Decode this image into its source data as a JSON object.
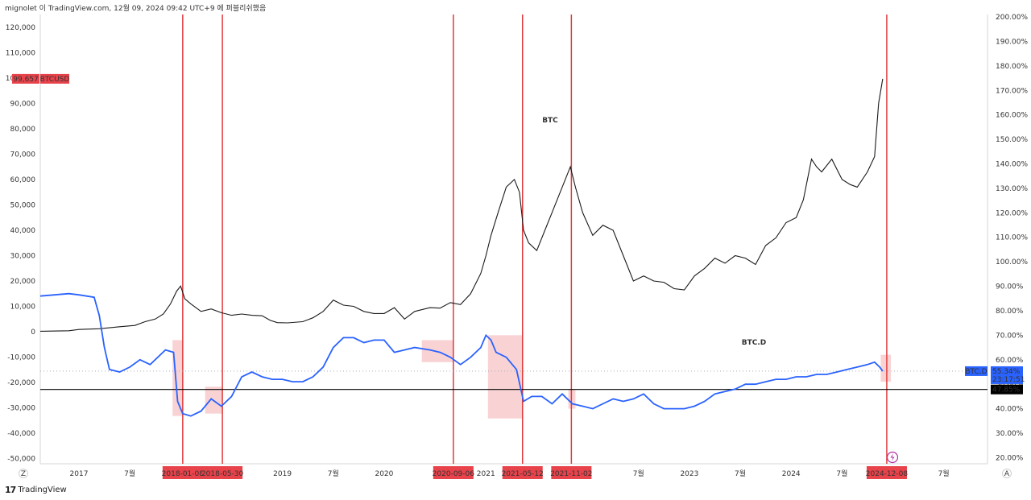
{
  "header": {
    "text": "mignolet 이 TradingView.com, 12월 09, 2024 09:42 UTC+9 에 퍼블리쉬했음"
  },
  "footer": {
    "logo": "17",
    "brand": "TradingView"
  },
  "axis_corner_left": "Z",
  "axis_corner_right": "A",
  "colors": {
    "btc": "#1a1a1a",
    "btcd": "#2962ff",
    "vline": "#e03a3a",
    "shade": "#f5b5b8",
    "label_bg": "#e8424a",
    "grid": "#ffffff",
    "hline": "#000000"
  },
  "chart_data": {
    "type": "line",
    "title": "",
    "annotations": {
      "btc": "BTC",
      "btcd": "BTC.D"
    },
    "left_axis": {
      "ylim": [
        -52000,
        125000
      ],
      "ticks": [
        "120,000",
        "110,000",
        "100,000",
        "90,000",
        "80,000",
        "70,000",
        "60,000",
        "50,000",
        "40,000",
        "30,000",
        "20,000",
        "10,000",
        "0",
        "-10,000",
        "-20,000",
        "-30,000",
        "-40,000",
        "-50,000"
      ],
      "tick_values": [
        120000,
        110000,
        100000,
        90000,
        80000,
        70000,
        60000,
        50000,
        40000,
        30000,
        20000,
        10000,
        0,
        -10000,
        -20000,
        -30000,
        -40000,
        -50000
      ]
    },
    "right_axis": {
      "unit": "%",
      "ylim": [
        17.5,
        201
      ],
      "ticks": [
        "200.00%",
        "190.00%",
        "180.00%",
        "170.00%",
        "160.00%",
        "150.00%",
        "140.00%",
        "130.00%",
        "120.00%",
        "110.00%",
        "100.00%",
        "90.00%",
        "80.00%",
        "70.00%",
        "60.00%",
        "50.00%",
        "40.00%",
        "30.00%",
        "20.00%"
      ],
      "tick_values": [
        200,
        190,
        180,
        170,
        160,
        150,
        140,
        130,
        120,
        110,
        100,
        90,
        80,
        70,
        60,
        50,
        40,
        30,
        20
      ]
    },
    "x_axis": {
      "ticks": [
        {
          "label": "2017",
          "t": 2017.0
        },
        {
          "label": "7월",
          "t": 2017.5
        },
        {
          "label": "2019",
          "t": 2019.0
        },
        {
          "label": "7월",
          "t": 2019.5
        },
        {
          "label": "2020",
          "t": 2020.0
        },
        {
          "label": "2021",
          "t": 2021.0
        },
        {
          "label": "7월",
          "t": 2022.5
        },
        {
          "label": "2023",
          "t": 2023.0
        },
        {
          "label": "7월",
          "t": 2023.5
        },
        {
          "label": "2024",
          "t": 2024.0
        },
        {
          "label": "7월",
          "t": 2024.5
        },
        {
          "label": "7월",
          "t": 2025.5
        }
      ],
      "xlim": [
        2016.62,
        2025.93
      ]
    },
    "series": [
      {
        "name": "BTCUSD",
        "axis": "left",
        "last_value_label": "99,657",
        "points": [
          [
            2016.62,
            200
          ],
          [
            2016.9,
            400
          ],
          [
            2017.0,
            900
          ],
          [
            2017.2,
            1200
          ],
          [
            2017.4,
            2000
          ],
          [
            2017.55,
            2500
          ],
          [
            2017.65,
            4000
          ],
          [
            2017.75,
            5000
          ],
          [
            2017.83,
            7000
          ],
          [
            2017.9,
            11000
          ],
          [
            2017.96,
            16000
          ],
          [
            2018.0,
            18000
          ],
          [
            2018.04,
            13000
          ],
          [
            2018.1,
            11000
          ],
          [
            2018.2,
            8000
          ],
          [
            2018.3,
            9000
          ],
          [
            2018.4,
            7500
          ],
          [
            2018.5,
            6500
          ],
          [
            2018.6,
            7000
          ],
          [
            2018.7,
            6500
          ],
          [
            2018.8,
            6300
          ],
          [
            2018.88,
            4500
          ],
          [
            2018.95,
            3600
          ],
          [
            2019.05,
            3500
          ],
          [
            2019.2,
            4000
          ],
          [
            2019.3,
            5500
          ],
          [
            2019.4,
            8000
          ],
          [
            2019.5,
            12500
          ],
          [
            2019.6,
            10500
          ],
          [
            2019.7,
            10000
          ],
          [
            2019.8,
            8000
          ],
          [
            2019.9,
            7200
          ],
          [
            2020.0,
            7200
          ],
          [
            2020.1,
            9500
          ],
          [
            2020.2,
            5000
          ],
          [
            2020.3,
            8000
          ],
          [
            2020.45,
            9500
          ],
          [
            2020.55,
            9300
          ],
          [
            2020.65,
            11500
          ],
          [
            2020.75,
            10700
          ],
          [
            2020.85,
            15000
          ],
          [
            2020.95,
            23000
          ],
          [
            2021.0,
            30000
          ],
          [
            2021.05,
            38000
          ],
          [
            2021.12,
            47000
          ],
          [
            2021.2,
            57000
          ],
          [
            2021.28,
            60000
          ],
          [
            2021.33,
            55000
          ],
          [
            2021.37,
            40000
          ],
          [
            2021.42,
            35000
          ],
          [
            2021.5,
            32000
          ],
          [
            2021.58,
            40000
          ],
          [
            2021.65,
            47000
          ],
          [
            2021.75,
            57000
          ],
          [
            2021.83,
            65000
          ],
          [
            2021.88,
            57000
          ],
          [
            2021.95,
            47000
          ],
          [
            2022.05,
            38000
          ],
          [
            2022.15,
            42000
          ],
          [
            2022.25,
            40000
          ],
          [
            2022.35,
            30000
          ],
          [
            2022.45,
            20000
          ],
          [
            2022.55,
            22000
          ],
          [
            2022.65,
            20000
          ],
          [
            2022.75,
            19500
          ],
          [
            2022.85,
            17000
          ],
          [
            2022.95,
            16500
          ],
          [
            2023.05,
            22000
          ],
          [
            2023.15,
            25000
          ],
          [
            2023.25,
            29000
          ],
          [
            2023.35,
            27000
          ],
          [
            2023.45,
            30000
          ],
          [
            2023.55,
            29000
          ],
          [
            2023.65,
            26500
          ],
          [
            2023.75,
            34000
          ],
          [
            2023.85,
            37000
          ],
          [
            2023.95,
            43000
          ],
          [
            2024.05,
            45000
          ],
          [
            2024.12,
            52000
          ],
          [
            2024.2,
            68000
          ],
          [
            2024.25,
            65000
          ],
          [
            2024.3,
            63000
          ],
          [
            2024.4,
            68000
          ],
          [
            2024.5,
            60000
          ],
          [
            2024.58,
            58000
          ],
          [
            2024.65,
            57000
          ],
          [
            2024.75,
            63000
          ],
          [
            2024.82,
            69000
          ],
          [
            2024.86,
            90000
          ],
          [
            2024.9,
            99657
          ]
        ]
      },
      {
        "name": "BTC.D",
        "axis": "right",
        "last_value_label": "55.34%",
        "countdown": "23:17:51",
        "points": [
          [
            2016.62,
            86
          ],
          [
            2016.9,
            87
          ],
          [
            2017.0,
            86.5
          ],
          [
            2017.15,
            85.5
          ],
          [
            2017.2,
            78
          ],
          [
            2017.25,
            65
          ],
          [
            2017.3,
            56
          ],
          [
            2017.4,
            55
          ],
          [
            2017.5,
            57
          ],
          [
            2017.6,
            60
          ],
          [
            2017.7,
            58
          ],
          [
            2017.85,
            64
          ],
          [
            2017.93,
            63
          ],
          [
            2017.97,
            43
          ],
          [
            2018.02,
            38
          ],
          [
            2018.1,
            37
          ],
          [
            2018.2,
            39
          ],
          [
            2018.3,
            44
          ],
          [
            2018.4,
            41
          ],
          [
            2018.5,
            45
          ],
          [
            2018.6,
            53
          ],
          [
            2018.7,
            55
          ],
          [
            2018.8,
            53
          ],
          [
            2018.9,
            52
          ],
          [
            2019.0,
            52
          ],
          [
            2019.1,
            51
          ],
          [
            2019.2,
            51
          ],
          [
            2019.3,
            53
          ],
          [
            2019.4,
            57
          ],
          [
            2019.5,
            65
          ],
          [
            2019.6,
            69
          ],
          [
            2019.7,
            69
          ],
          [
            2019.8,
            67
          ],
          [
            2019.9,
            68
          ],
          [
            2020.0,
            68
          ],
          [
            2020.1,
            63
          ],
          [
            2020.2,
            64
          ],
          [
            2020.3,
            65
          ],
          [
            2020.45,
            64
          ],
          [
            2020.55,
            63
          ],
          [
            2020.65,
            61
          ],
          [
            2020.75,
            58
          ],
          [
            2020.85,
            61
          ],
          [
            2020.95,
            65
          ],
          [
            2021.0,
            70
          ],
          [
            2021.05,
            68
          ],
          [
            2021.1,
            63
          ],
          [
            2021.2,
            61
          ],
          [
            2021.3,
            56
          ],
          [
            2021.37,
            43
          ],
          [
            2021.45,
            45
          ],
          [
            2021.55,
            45
          ],
          [
            2021.65,
            42
          ],
          [
            2021.75,
            46
          ],
          [
            2021.85,
            42
          ],
          [
            2021.95,
            41
          ],
          [
            2022.05,
            40
          ],
          [
            2022.15,
            42
          ],
          [
            2022.25,
            44
          ],
          [
            2022.35,
            43
          ],
          [
            2022.45,
            44
          ],
          [
            2022.55,
            46
          ],
          [
            2022.65,
            42
          ],
          [
            2022.75,
            40
          ],
          [
            2022.85,
            40
          ],
          [
            2022.95,
            40
          ],
          [
            2023.05,
            41
          ],
          [
            2023.15,
            43
          ],
          [
            2023.25,
            46
          ],
          [
            2023.35,
            47
          ],
          [
            2023.45,
            48
          ],
          [
            2023.55,
            50
          ],
          [
            2023.65,
            50
          ],
          [
            2023.75,
            51
          ],
          [
            2023.85,
            52
          ],
          [
            2023.95,
            52
          ],
          [
            2024.05,
            53
          ],
          [
            2024.15,
            53
          ],
          [
            2024.25,
            54
          ],
          [
            2024.35,
            54
          ],
          [
            2024.45,
            55
          ],
          [
            2024.55,
            56
          ],
          [
            2024.65,
            57
          ],
          [
            2024.75,
            58
          ],
          [
            2024.82,
            59
          ],
          [
            2024.87,
            57
          ],
          [
            2024.9,
            55.34
          ]
        ]
      }
    ],
    "horizontal_line": {
      "axis": "right",
      "value": 47.85,
      "label": "47.85%"
    },
    "vertical_markers": [
      {
        "label": "2018-01-08",
        "t": 2018.02
      },
      {
        "label": "2018-05-30",
        "t": 2018.41
      },
      {
        "label": "2020-09-06",
        "t": 2020.68
      },
      {
        "label": "2021-05-12",
        "t": 2021.36
      },
      {
        "label": "2021-11-02",
        "t": 2021.84
      },
      {
        "label": "2024-12-08",
        "t": 2024.94
      }
    ],
    "shaded_ranges": [
      {
        "t0": 2017.92,
        "t1": 2018.02,
        "y0": 37,
        "y1": 68
      },
      {
        "t0": 2018.24,
        "t1": 2018.41,
        "y0": 38,
        "y1": 49
      },
      {
        "t0": 2020.37,
        "t1": 2020.68,
        "y0": 59,
        "y1": 68
      },
      {
        "t0": 2021.02,
        "t1": 2021.36,
        "y0": 36,
        "y1": 70
      },
      {
        "t0": 2021.81,
        "t1": 2021.88,
        "y0": 40,
        "y1": 48
      },
      {
        "t0": 2024.88,
        "t1": 2024.98,
        "y0": 51,
        "y1": 62
      }
    ],
    "grid": false
  }
}
